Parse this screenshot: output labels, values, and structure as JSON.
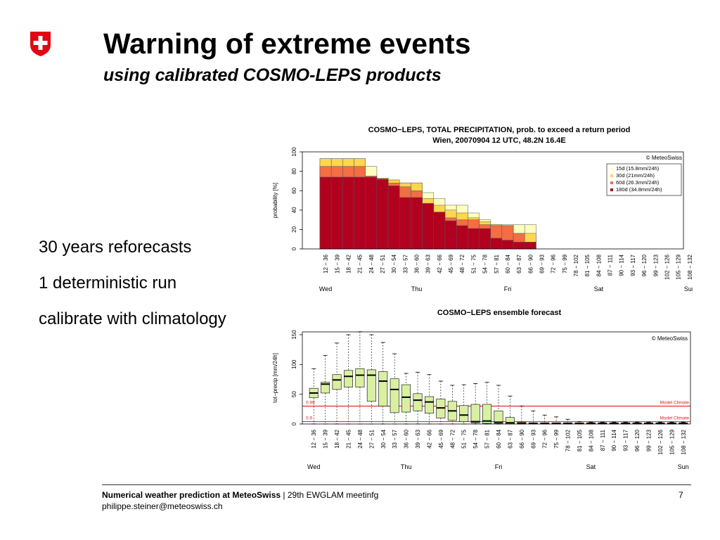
{
  "slide": {
    "title": "Warning of extreme events",
    "subtitle": "using calibrated COSMO-LEPS products",
    "bullets": [
      "30 years reforecasts",
      "1 deterministic run",
      "calibrate with climatology"
    ],
    "footer": {
      "org": "Numerical weather prediction at MeteoSwiss",
      "separator": " | ",
      "event": "29th EWGLAM meetinfg",
      "email": "philippe.steiner@meteoswiss.ch",
      "page": "7"
    },
    "colors": {
      "logo_red": "#e30613"
    }
  },
  "chart_data": [
    {
      "type": "bar",
      "title": "COSMO−LEPS, TOTAL PRECIPITATION, prob. to exceed a return period",
      "subtitle": "Wien, 20070904 12 UTC, 48.2N  16.4E",
      "copyright": "© MeteoSwiss",
      "ylabel": "probability [%]",
      "ylim": [
        0,
        100
      ],
      "yticks": [
        0,
        20,
        40,
        60,
        80,
        100
      ],
      "categories": [
        "12 − 36",
        "15 − 39",
        "18 − 42",
        "21 − 45",
        "24 − 48",
        "27 − 51",
        "30 − 54",
        "33 − 57",
        "36 − 60",
        "39 − 63",
        "42 − 66",
        "45 − 69",
        "48 − 72",
        "51 − 75",
        "54 − 78",
        "57 − 81",
        "60 − 84",
        "63 − 87",
        "66 − 90",
        "69 − 93",
        "72 − 96",
        "75 − 99",
        "78 − 102",
        "81 − 105",
        "84 − 108",
        "87 − 111",
        "90 − 114",
        "93 − 117",
        "96 − 120",
        "99 − 123",
        "102 − 126",
        "105 − 129",
        "108 − 132"
      ],
      "days": [
        {
          "label": "Wed",
          "index": 0
        },
        {
          "label": "Thu",
          "index": 8
        },
        {
          "label": "Fri",
          "index": 16
        },
        {
          "label": "Sat",
          "index": 24
        },
        {
          "label": "Sun",
          "index": 32
        }
      ],
      "series": [
        {
          "name": "15d (15.8mm/24h)",
          "color": "#ffffbf",
          "values": [
            93,
            93,
            93,
            93,
            85,
            73,
            71,
            68,
            68,
            58,
            52,
            45,
            45,
            37,
            30,
            25,
            25,
            25,
            25,
            0,
            0,
            0,
            0,
            0,
            0,
            0,
            0,
            0,
            0,
            0,
            0,
            0,
            0
          ]
        },
        {
          "name": "30d (21mm/24h)",
          "color": "#fed64f",
          "values": [
            93,
            93,
            93,
            93,
            75,
            73,
            71,
            68,
            68,
            52,
            45,
            40,
            37,
            32,
            28,
            25,
            24,
            16,
            16,
            0,
            0,
            0,
            0,
            0,
            0,
            0,
            0,
            0,
            0,
            0,
            0,
            0,
            0
          ]
        },
        {
          "name": "60d (26.3mm/24h)",
          "color": "#f46d43",
          "values": [
            85,
            85,
            85,
            85,
            75,
            72,
            68,
            64,
            60,
            46,
            36,
            32,
            30,
            30,
            25,
            24,
            24,
            16,
            0,
            0,
            0,
            0,
            0,
            0,
            0,
            0,
            0,
            0,
            0,
            0,
            0,
            0,
            0
          ]
        },
        {
          "name": "180d (34.8mm/24h)",
          "color": "#b2001f",
          "values": [
            74,
            74,
            74,
            74,
            74,
            72,
            65,
            53,
            53,
            47,
            38,
            29,
            24,
            21,
            21,
            11,
            9,
            7,
            7,
            0,
            0,
            0,
            0,
            0,
            0,
            0,
            0,
            0,
            0,
            0,
            0,
            0,
            0
          ]
        }
      ],
      "legend": "top-right"
    },
    {
      "type": "box",
      "title": "COSMO−LEPS ensemble forecast",
      "copyright": "© MeteoSwiss",
      "ylabel": "tot−precip [mm/24h]",
      "ylim": [
        0,
        150
      ],
      "yticks": [
        0,
        50,
        100,
        150
      ],
      "categories": [
        "12 − 36",
        "15 − 39",
        "18 − 42",
        "21 − 45",
        "24 − 48",
        "27 − 51",
        "30 − 54",
        "33 − 57",
        "36 − 60",
        "39 − 63",
        "42 − 66",
        "45 − 69",
        "48 − 72",
        "51 − 75",
        "54 − 78",
        "57 − 81",
        "60 − 84",
        "63 − 87",
        "66 − 90",
        "69 − 93",
        "72 − 96",
        "75 − 99",
        "78 − 102",
        "81 − 105",
        "84 − 108",
        "87 − 111",
        "90 − 114",
        "93 − 117",
        "96 − 120",
        "99 − 123",
        "102 − 126",
        "105 − 129",
        "108 − 132"
      ],
      "days": [
        {
          "label": "Wed",
          "index": 0
        },
        {
          "label": "Thu",
          "index": 8
        },
        {
          "label": "Fri",
          "index": 16
        },
        {
          "label": "Sat",
          "index": 24
        },
        {
          "label": "Sun",
          "index": 32
        }
      ],
      "box_color": "#d9f0a3",
      "boxes": [
        {
          "min": 0,
          "q1": 44,
          "median": 52,
          "q3": 60,
          "max": 93
        },
        {
          "min": 0,
          "q1": 52,
          "median": 67,
          "q3": 70,
          "max": 115
        },
        {
          "min": 0,
          "q1": 58,
          "median": 74,
          "q3": 83,
          "max": 136
        },
        {
          "min": 0,
          "q1": 62,
          "median": 80,
          "q3": 90,
          "max": 150
        },
        {
          "min": 0,
          "q1": 62,
          "median": 82,
          "q3": 93,
          "max": 155
        },
        {
          "min": 0,
          "q1": 38,
          "median": 82,
          "q3": 91,
          "max": 150
        },
        {
          "min": 0,
          "q1": 30,
          "median": 72,
          "q3": 88,
          "max": 137
        },
        {
          "min": 0,
          "q1": 19,
          "median": 58,
          "q3": 76,
          "max": 118
        },
        {
          "min": 0,
          "q1": 20,
          "median": 45,
          "q3": 66,
          "max": 85
        },
        {
          "min": 0,
          "q1": 22,
          "median": 40,
          "q3": 51,
          "max": 87
        },
        {
          "min": 0,
          "q1": 18,
          "median": 37,
          "q3": 46,
          "max": 83
        },
        {
          "min": 0,
          "q1": 10,
          "median": 27,
          "q3": 42,
          "max": 72
        },
        {
          "min": 0,
          "q1": 6,
          "median": 22,
          "q3": 38,
          "max": 65
        },
        {
          "min": 0,
          "q1": 4,
          "median": 15,
          "q3": 31,
          "max": 66
        },
        {
          "min": 0,
          "q1": 2,
          "median": 4,
          "q3": 33,
          "max": 68
        },
        {
          "min": 0,
          "q1": 1,
          "median": 5,
          "q3": 33,
          "max": 70
        },
        {
          "min": 0,
          "q1": 1,
          "median": 3,
          "q3": 22,
          "max": 65
        },
        {
          "min": 0,
          "q1": 0,
          "median": 2,
          "q3": 11,
          "max": 47
        },
        {
          "min": 0,
          "q1": 0,
          "median": 1,
          "q3": 3,
          "max": 30
        },
        {
          "min": 0,
          "q1": 0,
          "median": 1,
          "q3": 2,
          "max": 22
        },
        {
          "min": 0,
          "q1": 0,
          "median": 1,
          "q3": 2,
          "max": 15
        },
        {
          "min": 0,
          "q1": 0,
          "median": 1,
          "q3": 2,
          "max": 12
        },
        {
          "min": 0,
          "q1": 0,
          "median": 1,
          "q3": 2,
          "max": 8
        },
        {
          "min": 0,
          "q1": 0,
          "median": 1,
          "q3": 2,
          "max": 4
        },
        {
          "min": 0,
          "q1": 0,
          "median": 1,
          "q3": 2,
          "max": 3
        },
        {
          "min": 0,
          "q1": 0,
          "median": 1,
          "q3": 2,
          "max": 3
        },
        {
          "min": 0,
          "q1": 0,
          "median": 1,
          "q3": 2,
          "max": 3
        },
        {
          "min": 0,
          "q1": 0,
          "median": 1,
          "q3": 2,
          "max": 3
        },
        {
          "min": 0,
          "q1": 0,
          "median": 1,
          "q3": 2,
          "max": 3
        },
        {
          "min": 0,
          "q1": 0,
          "median": 1,
          "q3": 2,
          "max": 3
        },
        {
          "min": 0,
          "q1": 0,
          "median": 1,
          "q3": 2,
          "max": 3
        },
        {
          "min": 0,
          "q1": 0,
          "median": 1,
          "q3": 2,
          "max": 3
        },
        {
          "min": 0,
          "q1": 0,
          "median": 1,
          "q3": 2,
          "max": 3
        }
      ],
      "reference_lines": [
        {
          "label": "0.99",
          "value": 30,
          "tag": "Model Climate",
          "color": "#e31a1c"
        },
        {
          "label": "0.9",
          "value": 4,
          "tag": "Model Climate",
          "color": "#e31a1c"
        }
      ]
    }
  ]
}
